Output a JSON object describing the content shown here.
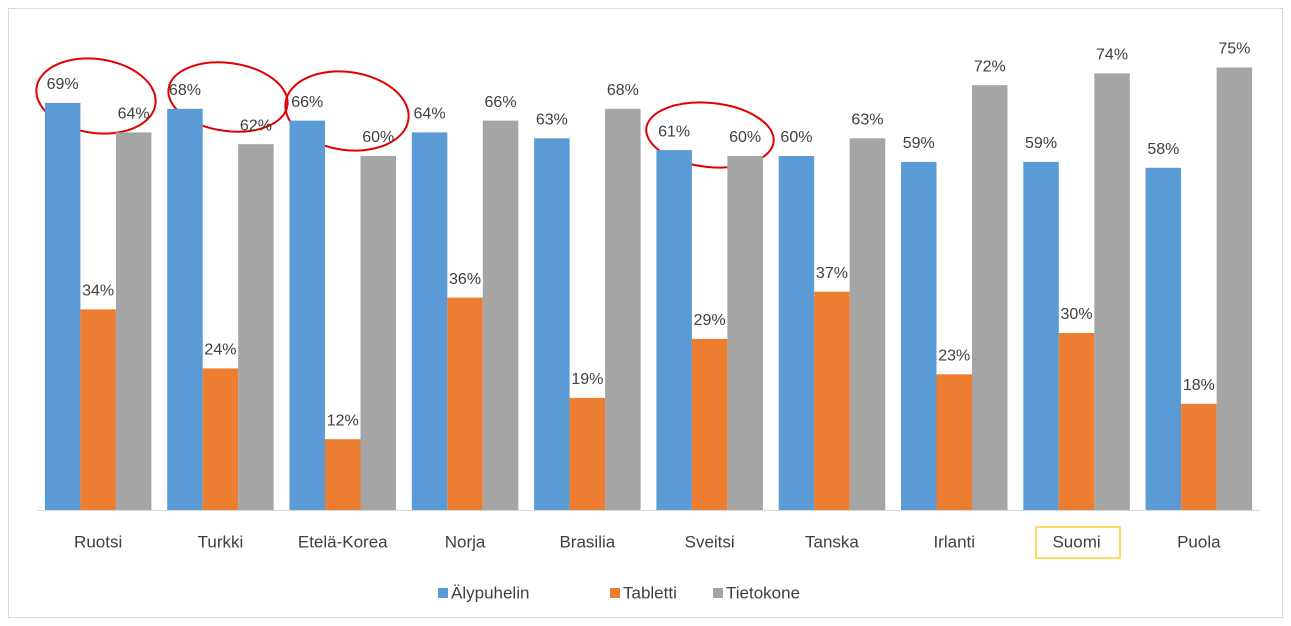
{
  "chart_data": {
    "type": "bar",
    "categories": [
      "Ruotsi",
      "Turkki",
      "Etelä-Korea",
      "Norja",
      "Brasilia",
      "Sveitsi",
      "Tanska",
      "Irlanti",
      "Suomi",
      "Puola"
    ],
    "series": [
      {
        "name": "Älypuhelin",
        "color": "#5b9bd5",
        "values": [
          69,
          68,
          66,
          64,
          63,
          61,
          60,
          59,
          59,
          58
        ],
        "value_labels": [
          "69%",
          "68%",
          "66%",
          "64%",
          "63%",
          "61%",
          "60%",
          "59%",
          "59%",
          "58%"
        ]
      },
      {
        "name": "Tabletti",
        "color": "#ed7d31",
        "values": [
          34,
          24,
          12,
          36,
          19,
          29,
          37,
          23,
          30,
          18
        ],
        "value_labels": [
          "34%",
          "24%",
          "12%",
          "36%",
          "19%",
          "29%",
          "37%",
          "23%",
          "30%",
          "18%"
        ]
      },
      {
        "name": "Tietokone",
        "color": "#a5a5a5",
        "values": [
          64,
          62,
          60,
          66,
          68,
          60,
          63,
          72,
          74,
          75
        ],
        "value_labels": [
          "64%",
          "62%",
          "60%",
          "66%",
          "68%",
          "60%",
          "63%",
          "72%",
          "74%",
          "75%"
        ]
      }
    ],
    "ylim": [
      0,
      80
    ],
    "grid": false,
    "legend": "bottom"
  }
}
